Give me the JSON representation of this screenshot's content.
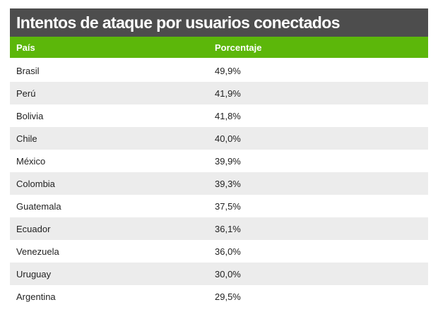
{
  "chart_data": {
    "type": "table",
    "title": "Intentos de ataque por usuarios conectados",
    "columns": [
      "País",
      "Porcentaje"
    ],
    "rows": [
      {
        "country": "Brasil",
        "percent": "49,9%"
      },
      {
        "country": "Perú",
        "percent": "41,9%"
      },
      {
        "country": "Bolivia",
        "percent": "41,8%"
      },
      {
        "country": "Chile",
        "percent": "40,0%"
      },
      {
        "country": "México",
        "percent": "39,9%"
      },
      {
        "country": "Colombia",
        "percent": "39,3%"
      },
      {
        "country": "Guatemala",
        "percent": "37,5%"
      },
      {
        "country": "Ecuador",
        "percent": "36,1%"
      },
      {
        "country": "Venezuela",
        "percent": "36,0%"
      },
      {
        "country": "Uruguay",
        "percent": "30,0%"
      },
      {
        "country": "Argentina",
        "percent": "29,5%"
      }
    ],
    "values": [
      49.9,
      41.9,
      41.8,
      40.0,
      39.9,
      39.3,
      37.5,
      36.1,
      36.0,
      30.0,
      29.5
    ]
  },
  "colors": {
    "title_background": "#4d4d4d",
    "header_background": "#5cb70a",
    "stripe_background": "#ececec",
    "text": "#222222"
  }
}
